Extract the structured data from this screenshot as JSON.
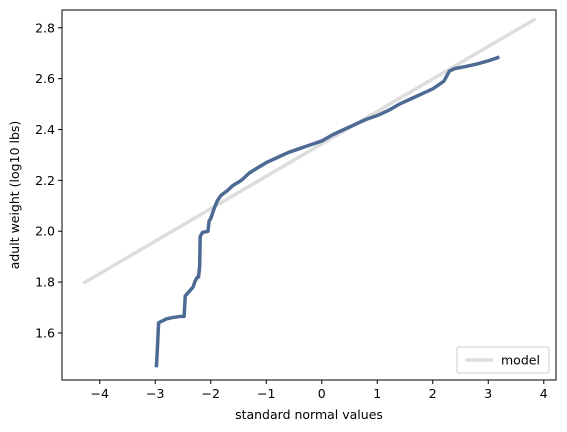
{
  "chart_data": {
    "type": "line",
    "title": "",
    "xlabel": "standard normal values",
    "ylabel": "adult weight (log10 lbs)",
    "xlim": [
      -4.68,
      4.22
    ],
    "ylim": [
      1.415,
      2.87
    ],
    "xticks": [
      -4,
      -3,
      -2,
      -1,
      0,
      1,
      2,
      3,
      4
    ],
    "xtick_labels": [
      "−4",
      "−3",
      "−2",
      "−1",
      "0",
      "1",
      "2",
      "3",
      "4"
    ],
    "yticks": [
      1.6,
      1.8,
      2.0,
      2.2,
      2.4,
      2.6,
      2.8
    ],
    "ytick_labels": [
      "1.6",
      "1.8",
      "2.0",
      "2.2",
      "2.4",
      "2.6",
      "2.8"
    ],
    "grid": false,
    "legend": {
      "position": "lower-right",
      "entries": [
        "model"
      ]
    },
    "series": [
      {
        "name": "model",
        "color": "#dddddd",
        "x": [
          -4.3,
          3.85
        ],
        "y": [
          1.795,
          2.835
        ]
      },
      {
        "color": "#4c6a94",
        "x": [
          -2.98,
          -2.96,
          -2.94,
          -2.8,
          -2.7,
          -2.55,
          -2.48,
          -2.46,
          -2.32,
          -2.28,
          -2.24,
          -2.22,
          -2.2,
          -2.19,
          -2.15,
          -2.05,
          -2.03,
          -2.0,
          -1.97,
          -1.92,
          -1.88,
          -1.82,
          -1.7,
          -1.6,
          -1.45,
          -1.3,
          -1.15,
          -1.0,
          -0.8,
          -0.6,
          -0.4,
          -0.2,
          0.0,
          0.2,
          0.4,
          0.6,
          0.8,
          1.0,
          1.2,
          1.4,
          1.6,
          1.8,
          2.0,
          2.1,
          2.2,
          2.25,
          2.3,
          2.4,
          2.6,
          2.8,
          3.0,
          3.2
        ],
        "y": [
          1.465,
          1.545,
          1.64,
          1.655,
          1.66,
          1.665,
          1.665,
          1.745,
          1.78,
          1.805,
          1.82,
          1.82,
          1.86,
          1.98,
          1.995,
          2.0,
          2.04,
          2.05,
          2.07,
          2.1,
          2.12,
          2.14,
          2.16,
          2.18,
          2.2,
          2.23,
          2.25,
          2.27,
          2.29,
          2.31,
          2.325,
          2.34,
          2.355,
          2.38,
          2.4,
          2.42,
          2.44,
          2.455,
          2.475,
          2.5,
          2.52,
          2.54,
          2.56,
          2.575,
          2.59,
          2.61,
          2.63,
          2.64,
          2.648,
          2.658,
          2.67,
          2.685
        ]
      }
    ]
  }
}
